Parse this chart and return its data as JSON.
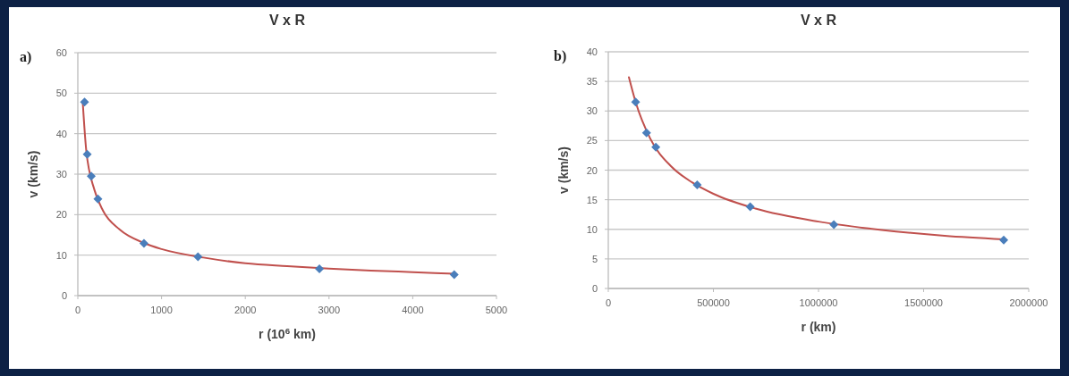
{
  "chart_data": [
    {
      "type": "scatter",
      "title": "V x R",
      "xlabel": "r (10$^{6}$ km)",
      "ylabel": "v (km/s)",
      "annotations": [
        "a)"
      ],
      "xlim": [
        0,
        5000
      ],
      "xticks": [
        0,
        1000,
        2000,
        3000,
        4000,
        5000
      ],
      "ylim": [
        0,
        60
      ],
      "yticks": [
        0,
        10,
        20,
        30,
        40,
        50,
        60
      ],
      "grid": "y",
      "series": [
        {
          "type": "line",
          "color": "#c0504d",
          "line_style": "solid",
          "marker": "none",
          "x": [
            58,
            100,
            200,
            300,
            500,
            800,
            1000,
            1500,
            2000,
            2500,
            3000,
            3500,
            4000,
            4497
          ],
          "values": [
            48,
            36,
            26,
            21,
            16.3,
            12.9,
            11.5,
            9.4,
            8.0,
            7.3,
            6.7,
            6.2,
            5.8,
            5.4
          ]
        },
        {
          "type": "scatter",
          "color": "#4a7ebb",
          "marker": "diamond",
          "x": [
            80,
            112,
            160,
            240,
            790,
            1435,
            2885,
            4495
          ],
          "values": [
            47.8,
            34.9,
            29.5,
            23.9,
            12.9,
            9.6,
            6.6,
            5.2
          ]
        }
      ]
    },
    {
      "type": "scatter",
      "title": "V x R",
      "xlabel": "r (km)",
      "ylabel": "v (km/s)",
      "annotations": [
        "b)"
      ],
      "xlim": [
        0,
        2000000
      ],
      "xticks": [
        0,
        500000,
        1000000,
        1500000,
        2000000
      ],
      "ylim": [
        0,
        40
      ],
      "yticks": [
        0,
        5,
        10,
        15,
        20,
        25,
        30,
        35,
        40
      ],
      "grid": "y",
      "series": [
        {
          "type": "line",
          "color": "#c0504d",
          "line_style": "solid",
          "marker": "none",
          "x": [
            98000,
            130000,
            200000,
            300000,
            400000,
            500000,
            700000,
            1000000,
            1300000,
            1600000,
            1881000
          ],
          "values": [
            35.7,
            31.5,
            25.3,
            20.6,
            17.9,
            16.0,
            13.5,
            11.3,
            9.9,
            8.9,
            8.3
          ]
        },
        {
          "type": "scatter",
          "color": "#4a7ebb",
          "marker": "diamond",
          "x": [
            130000,
            182000,
            226000,
            423000,
            675000,
            1073000,
            1881000
          ],
          "values": [
            31.5,
            26.3,
            23.9,
            17.5,
            13.8,
            10.8,
            8.2
          ]
        }
      ]
    }
  ]
}
